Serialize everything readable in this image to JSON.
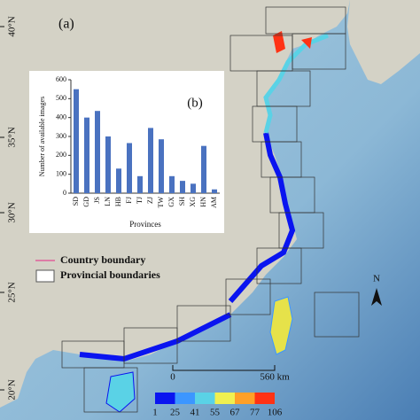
{
  "panel_label": "(a)",
  "latitude_labels": [
    "40°N",
    "35°N",
    "30°N",
    "25°N",
    "20°N"
  ],
  "legend": {
    "items": [
      "Country boundary",
      "Provincial boundaries"
    ]
  },
  "scale_bar": {
    "start": "0",
    "end": "560 km"
  },
  "north_label": "N",
  "colorbar": {
    "ticks": [
      1,
      25,
      41,
      55,
      67,
      77,
      106
    ],
    "colors": [
      "#0a14f0",
      "#3c96ff",
      "#5ad2e6",
      "#f0f050",
      "#ffa028",
      "#ff3214"
    ]
  },
  "chart_data": {
    "type": "bar",
    "panel_label": "(b)",
    "ylabel": "Number of available images",
    "xlabel": "Provinces",
    "categories": [
      "SD",
      "GD",
      "JS",
      "LN",
      "HB",
      "FJ",
      "TJ",
      "ZJ",
      "TW",
      "GX",
      "SH",
      "XG",
      "HN",
      "AM"
    ],
    "values": [
      550,
      400,
      435,
      300,
      130,
      265,
      90,
      345,
      285,
      90,
      65,
      50,
      250,
      20
    ],
    "color": "#4a72c0",
    "ylim": [
      0,
      600
    ],
    "yticks": [
      0,
      100,
      200,
      300,
      400,
      500,
      600
    ]
  }
}
